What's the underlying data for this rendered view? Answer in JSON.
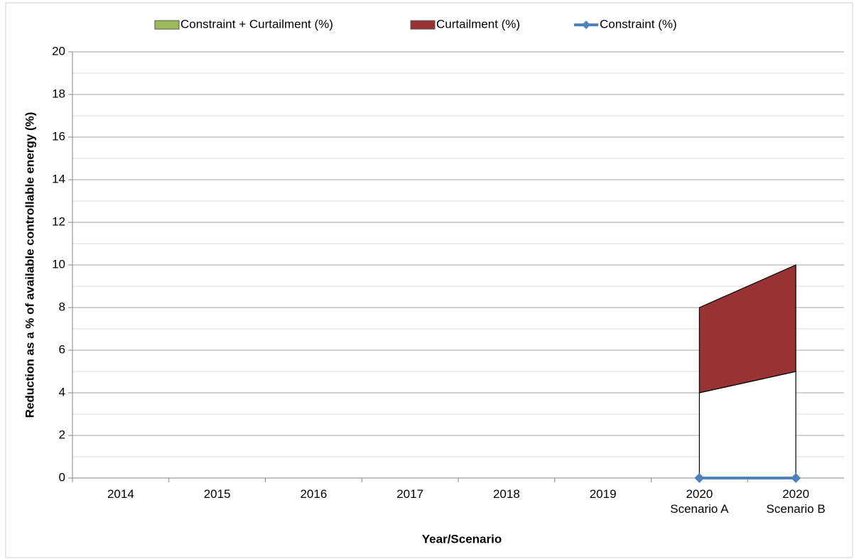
{
  "chart_data": {
    "type": "stacked_area",
    "xlabel": "Year/Scenario",
    "ylabel": "Reduction as a % of available controllable energy (%)",
    "categories": [
      "2014",
      "2015",
      "2016",
      "2017",
      "2018",
      "2019",
      "2020\nScenario A",
      "2020\nScenario B"
    ],
    "series": [
      {
        "name": "Constraint + Curtailment (%)",
        "color": "#9bbb59",
        "area_fill": "#ffffff",
        "kind": "area",
        "values": [
          null,
          null,
          null,
          null,
          null,
          null,
          4,
          5
        ]
      },
      {
        "name": "Curtailment (%)",
        "color": "#993333",
        "kind": "area",
        "values": [
          null,
          null,
          null,
          null,
          null,
          null,
          4,
          5
        ]
      },
      {
        "name": "Constraint (%)",
        "color": "#4f81bd",
        "kind": "line",
        "values": [
          null,
          null,
          null,
          null,
          null,
          null,
          0,
          0
        ]
      }
    ],
    "ylim": [
      0,
      20
    ],
    "yticks": [
      0,
      2,
      4,
      6,
      8,
      10,
      12,
      14,
      16,
      18,
      20
    ],
    "grid": true,
    "minor_grid": true,
    "legend": "top"
  }
}
